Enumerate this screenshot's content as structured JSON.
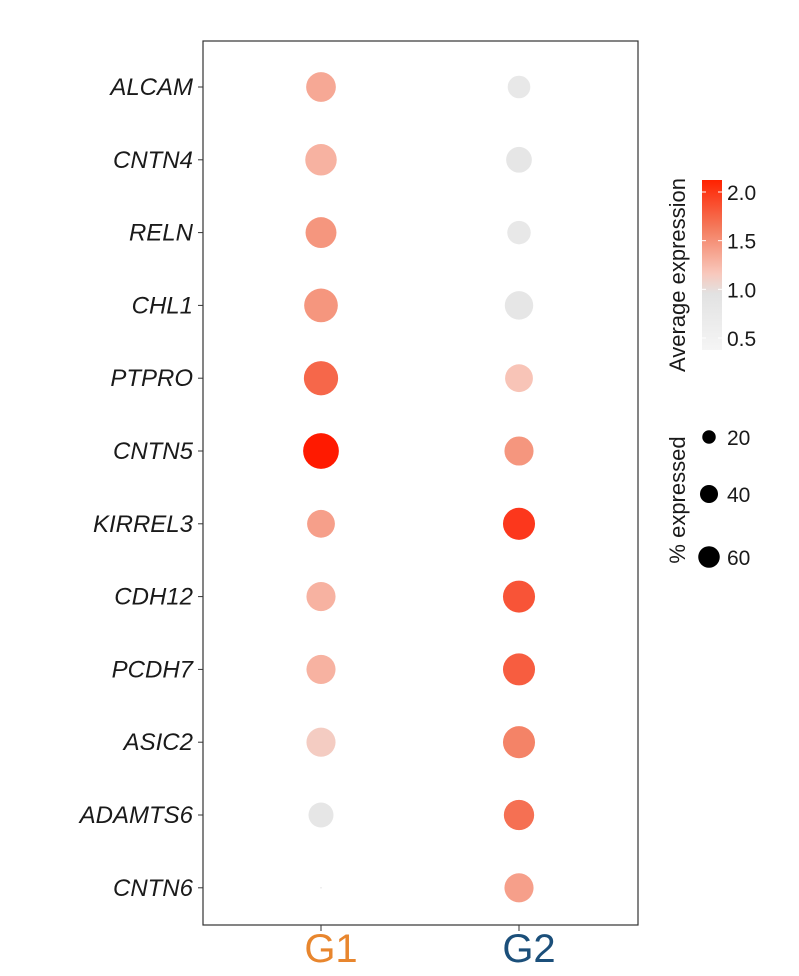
{
  "chart_data": {
    "type": "dot",
    "genes": [
      "ALCAM",
      "CNTN4",
      "RELN",
      "CHL1",
      "PTPRO",
      "CNTN5",
      "KIRREL3",
      "CDH12",
      "PCDH7",
      "ASIC2",
      "ADAMTS6",
      "CNTN6"
    ],
    "groups": [
      {
        "name": "G1",
        "color": "#E8862E"
      },
      {
        "name": "G2",
        "color": "#1B4F7A"
      }
    ],
    "series": [
      {
        "group": "G1",
        "avg_expression": [
          1.35,
          1.3,
          1.45,
          1.45,
          1.7,
          2.1,
          1.4,
          1.3,
          1.3,
          1.15,
          0.9,
          0.9
        ],
        "pct_expressed": [
          42,
          48,
          46,
          56,
          58,
          64,
          36,
          40,
          40,
          40,
          28,
          2
        ]
      },
      {
        "group": "G2",
        "avg_expression": [
          0.85,
          0.9,
          0.85,
          0.9,
          1.2,
          1.45,
          1.95,
          1.8,
          1.75,
          1.55,
          1.65,
          1.4
        ],
        "pct_expressed": [
          22,
          30,
          24,
          38,
          36,
          40,
          50,
          50,
          50,
          50,
          44,
          40
        ]
      }
    ],
    "color_legend": {
      "title": "Average expression",
      "ticks": [
        "2.0",
        "1.5",
        "1.0",
        "0.5"
      ],
      "range": [
        0.5,
        2.0
      ],
      "colors": {
        "low": "#F0F0F0",
        "mid": "#E4E4E4",
        "high": "#FF1A00"
      }
    },
    "size_legend": {
      "title": "% expressed",
      "ticks": [
        "20",
        "40",
        "60"
      ]
    }
  }
}
